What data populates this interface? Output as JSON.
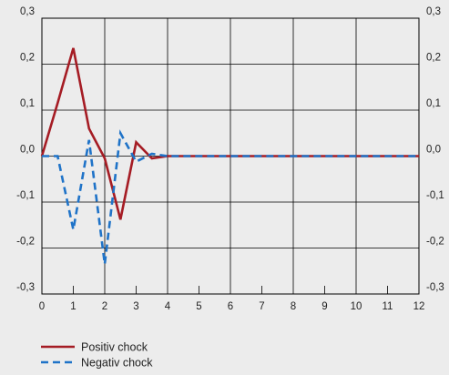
{
  "chart_data": {
    "type": "line",
    "title": "",
    "xlabel": "",
    "ylabel": "",
    "xlim": [
      0,
      12
    ],
    "ylim": [
      -0.3,
      0.3
    ],
    "x_ticks": [
      0,
      1,
      2,
      3,
      4,
      5,
      6,
      7,
      8,
      9,
      10,
      11,
      12
    ],
    "x_tick_labels": [
      "0",
      "1",
      "2",
      "3",
      "4",
      "5",
      "6",
      "7",
      "8",
      "9",
      "10",
      "11",
      "12"
    ],
    "y_ticks": [
      0.3,
      0.2,
      0.1,
      0.0,
      -0.1,
      -0.2,
      -0.3
    ],
    "y_tick_labels": [
      "0,3",
      "0,2",
      "0,1",
      "0,0",
      "-0,1",
      "-0,2",
      "-0,3"
    ],
    "grid": true,
    "legend_position": "bottom-left",
    "series": [
      {
        "name": "Positiv chock",
        "color": "#a51c24",
        "style": "solid",
        "x": [
          0,
          0.5,
          1,
          1.5,
          2,
          2.5,
          3,
          3.5,
          4,
          4.5,
          5,
          6,
          7,
          8,
          9,
          10,
          11,
          12
        ],
        "y": [
          0.0,
          0.115,
          0.235,
          0.06,
          -0.005,
          -0.138,
          0.03,
          -0.005,
          0.0,
          0.0,
          0.0,
          0.0,
          0.0,
          0.0,
          0.0,
          0.0,
          0.0,
          0.0
        ]
      },
      {
        "name": "Negativ chock",
        "color": "#1f73c8",
        "style": "dashed",
        "x": [
          0,
          0.5,
          1,
          1.5,
          2,
          2.5,
          3,
          3.5,
          4,
          4.5,
          5,
          6,
          7,
          8,
          9,
          10,
          11,
          12
        ],
        "y": [
          0.0,
          0.0,
          -0.16,
          0.035,
          -0.235,
          0.05,
          -0.012,
          0.005,
          0.0,
          0.0,
          0.0,
          0.0,
          0.0,
          0.0,
          0.0,
          0.0,
          0.0,
          0.0
        ]
      }
    ]
  }
}
